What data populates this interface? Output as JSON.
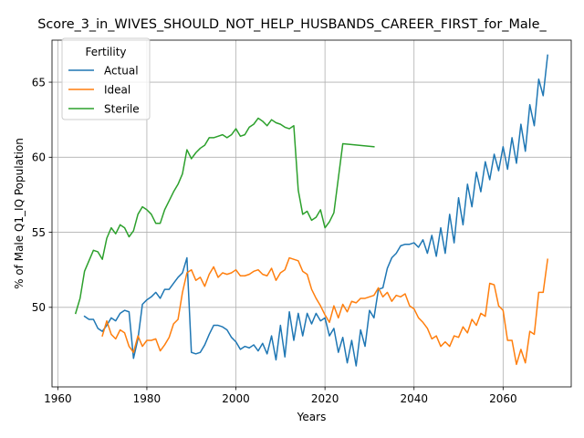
{
  "chart_data": {
    "type": "line",
    "title": "Score_3_in_WIVES_SHOULD_NOT_HELP_HUSBANDS_CAREER_FIRST_for_Male_",
    "xlabel": "Years",
    "ylabel": "% of Male Q1_IQ Population",
    "xlim": [
      1958.7,
      2075.3
    ],
    "ylim": [
      44.7,
      67.8
    ],
    "xticks": [
      1960,
      1980,
      2000,
      2020,
      2040,
      2060
    ],
    "yticks": [
      50,
      55,
      60,
      65
    ],
    "grid": true,
    "legend": {
      "title": "Fertility",
      "placement": "top-left"
    },
    "colors": {
      "Actual": "#1f77b4",
      "Ideal": "#ff7f0e",
      "Sterile": "#2ca02c"
    },
    "series": [
      {
        "name": "Actual",
        "points": [
          [
            1966,
            49.4
          ],
          [
            1967,
            49.2
          ],
          [
            1968,
            49.2
          ],
          [
            1969,
            48.6
          ],
          [
            1970,
            48.4
          ],
          [
            1971,
            48.8
          ],
          [
            1972,
            49.3
          ],
          [
            1973,
            49.1
          ],
          [
            1974,
            49.6
          ],
          [
            1975,
            49.8
          ],
          [
            1976,
            49.7
          ],
          [
            1977,
            46.6
          ],
          [
            1978,
            47.9
          ],
          [
            1979,
            50.2
          ],
          [
            1980,
            50.5
          ],
          [
            1981,
            50.7
          ],
          [
            1982,
            51.0
          ],
          [
            1983,
            50.6
          ],
          [
            1984,
            51.2
          ],
          [
            1985,
            51.2
          ],
          [
            1986,
            51.6
          ],
          [
            1987,
            52.0
          ],
          [
            1988,
            52.3
          ],
          [
            1989,
            53.3
          ],
          [
            1990,
            47.0
          ],
          [
            1991,
            46.9
          ],
          [
            1992,
            47.0
          ],
          [
            1993,
            47.5
          ],
          [
            1994,
            48.2
          ],
          [
            1995,
            48.8
          ],
          [
            1996,
            48.8
          ],
          [
            1997,
            48.7
          ],
          [
            1998,
            48.5
          ],
          [
            1999,
            48.0
          ],
          [
            2000,
            47.7
          ],
          [
            2001,
            47.2
          ],
          [
            2002,
            47.4
          ],
          [
            2003,
            47.3
          ],
          [
            2004,
            47.5
          ],
          [
            2005,
            47.1
          ],
          [
            2006,
            47.6
          ],
          [
            2007,
            46.9
          ],
          [
            2008,
            48.1
          ],
          [
            2009,
            46.5
          ],
          [
            2010,
            48.8
          ],
          [
            2011,
            46.7
          ],
          [
            2012,
            49.7
          ],
          [
            2013,
            47.8
          ],
          [
            2014,
            49.6
          ],
          [
            2015,
            48.1
          ],
          [
            2016,
            49.6
          ],
          [
            2017,
            48.9
          ],
          [
            2018,
            49.6
          ],
          [
            2019,
            49.1
          ],
          [
            2020,
            49.3
          ],
          [
            2021,
            48.1
          ],
          [
            2022,
            48.6
          ],
          [
            2023,
            47.0
          ],
          [
            2024,
            48.0
          ],
          [
            2025,
            46.3
          ],
          [
            2026,
            47.8
          ],
          [
            2027,
            46.1
          ],
          [
            2028,
            48.5
          ],
          [
            2029,
            47.4
          ],
          [
            2030,
            49.8
          ],
          [
            2031,
            49.3
          ],
          [
            2032,
            51.2
          ],
          [
            2033,
            51.3
          ],
          [
            2034,
            52.6
          ],
          [
            2035,
            53.3
          ],
          [
            2036,
            53.6
          ],
          [
            2037,
            54.1
          ],
          [
            2038,
            54.2
          ],
          [
            2039,
            54.2
          ],
          [
            2040,
            54.3
          ],
          [
            2041,
            54.0
          ],
          [
            2042,
            54.5
          ],
          [
            2043,
            53.6
          ],
          [
            2044,
            54.8
          ],
          [
            2045,
            53.4
          ],
          [
            2046,
            55.3
          ],
          [
            2047,
            53.6
          ],
          [
            2048,
            56.2
          ],
          [
            2049,
            54.3
          ],
          [
            2050,
            57.3
          ],
          [
            2051,
            55.5
          ],
          [
            2052,
            58.2
          ],
          [
            2053,
            56.7
          ],
          [
            2054,
            59.0
          ],
          [
            2055,
            57.7
          ],
          [
            2056,
            59.7
          ],
          [
            2057,
            58.5
          ],
          [
            2058,
            60.2
          ],
          [
            2059,
            59.1
          ],
          [
            2060,
            60.7
          ],
          [
            2061,
            59.2
          ],
          [
            2062,
            61.3
          ],
          [
            2063,
            59.6
          ],
          [
            2064,
            62.2
          ],
          [
            2065,
            60.4
          ],
          [
            2066,
            63.5
          ],
          [
            2067,
            62.1
          ],
          [
            2068,
            65.2
          ],
          [
            2069,
            64.1
          ],
          [
            2070,
            66.8
          ]
        ]
      },
      {
        "name": "Ideal",
        "points": [
          [
            1970,
            48.1
          ],
          [
            1971,
            49.1
          ],
          [
            1972,
            48.2
          ],
          [
            1973,
            47.9
          ],
          [
            1974,
            48.5
          ],
          [
            1975,
            48.3
          ],
          [
            1976,
            47.4
          ],
          [
            1977,
            47.0
          ],
          [
            1978,
            48.1
          ],
          [
            1979,
            47.4
          ],
          [
            1980,
            47.8
          ],
          [
            1981,
            47.8
          ],
          [
            1982,
            47.9
          ],
          [
            1983,
            47.1
          ],
          [
            1984,
            47.5
          ],
          [
            1985,
            48.0
          ],
          [
            1986,
            48.9
          ],
          [
            1987,
            49.2
          ],
          [
            1988,
            51.0
          ],
          [
            1989,
            52.3
          ],
          [
            1990,
            52.5
          ],
          [
            1991,
            51.8
          ],
          [
            1992,
            52.0
          ],
          [
            1993,
            51.4
          ],
          [
            1994,
            52.2
          ],
          [
            1995,
            52.7
          ],
          [
            1996,
            52.0
          ],
          [
            1997,
            52.3
          ],
          [
            1998,
            52.2
          ],
          [
            1999,
            52.3
          ],
          [
            2000,
            52.5
          ],
          [
            2001,
            52.1
          ],
          [
            2002,
            52.1
          ],
          [
            2003,
            52.2
          ],
          [
            2004,
            52.4
          ],
          [
            2005,
            52.5
          ],
          [
            2006,
            52.2
          ],
          [
            2007,
            52.1
          ],
          [
            2008,
            52.6
          ],
          [
            2009,
            51.8
          ],
          [
            2010,
            52.3
          ],
          [
            2011,
            52.5
          ],
          [
            2012,
            53.3
          ],
          [
            2013,
            53.2
          ],
          [
            2014,
            53.1
          ],
          [
            2015,
            52.4
          ],
          [
            2016,
            52.2
          ],
          [
            2017,
            51.2
          ],
          [
            2018,
            50.6
          ],
          [
            2019,
            50.1
          ],
          [
            2020,
            49.5
          ],
          [
            2021,
            49.0
          ],
          [
            2022,
            50.1
          ],
          [
            2023,
            49.3
          ],
          [
            2024,
            50.2
          ],
          [
            2025,
            49.7
          ],
          [
            2026,
            50.4
          ],
          [
            2027,
            50.3
          ],
          [
            2028,
            50.6
          ],
          [
            2029,
            50.6
          ],
          [
            2030,
            50.7
          ],
          [
            2031,
            50.8
          ],
          [
            2032,
            51.3
          ],
          [
            2033,
            50.7
          ],
          [
            2034,
            51.0
          ],
          [
            2035,
            50.4
          ],
          [
            2036,
            50.8
          ],
          [
            2037,
            50.7
          ],
          [
            2038,
            50.9
          ],
          [
            2039,
            50.1
          ],
          [
            2040,
            49.9
          ],
          [
            2041,
            49.3
          ],
          [
            2042,
            49.0
          ],
          [
            2043,
            48.6
          ],
          [
            2044,
            47.9
          ],
          [
            2045,
            48.1
          ],
          [
            2046,
            47.4
          ],
          [
            2047,
            47.7
          ],
          [
            2048,
            47.4
          ],
          [
            2049,
            48.1
          ],
          [
            2050,
            48.0
          ],
          [
            2051,
            48.7
          ],
          [
            2052,
            48.3
          ],
          [
            2053,
            49.2
          ],
          [
            2054,
            48.8
          ],
          [
            2055,
            49.6
          ],
          [
            2056,
            49.4
          ],
          [
            2057,
            51.6
          ],
          [
            2058,
            51.5
          ],
          [
            2059,
            50.1
          ],
          [
            2060,
            49.8
          ],
          [
            2061,
            47.8
          ],
          [
            2062,
            47.8
          ],
          [
            2063,
            46.2
          ],
          [
            2064,
            47.2
          ],
          [
            2065,
            46.3
          ],
          [
            2066,
            48.4
          ],
          [
            2067,
            48.2
          ],
          [
            2068,
            51.0
          ],
          [
            2069,
            51.0
          ],
          [
            2070,
            53.2
          ]
        ]
      },
      {
        "name": "Sterile",
        "points": [
          [
            1964,
            49.6
          ],
          [
            1965,
            50.6
          ],
          [
            1966,
            52.4
          ],
          [
            1967,
            53.1
          ],
          [
            1968,
            53.8
          ],
          [
            1969,
            53.7
          ],
          [
            1970,
            53.2
          ],
          [
            1971,
            54.6
          ],
          [
            1972,
            55.3
          ],
          [
            1973,
            54.9
          ],
          [
            1974,
            55.5
          ],
          [
            1975,
            55.3
          ],
          [
            1976,
            54.7
          ],
          [
            1977,
            55.1
          ],
          [
            1978,
            56.2
          ],
          [
            1979,
            56.7
          ],
          [
            1980,
            56.5
          ],
          [
            1981,
            56.2
          ],
          [
            1982,
            55.6
          ],
          [
            1983,
            55.6
          ],
          [
            1984,
            56.5
          ],
          [
            1985,
            57.1
          ],
          [
            1986,
            57.7
          ],
          [
            1987,
            58.2
          ],
          [
            1988,
            58.9
          ],
          [
            1989,
            60.5
          ],
          [
            1990,
            59.9
          ],
          [
            1991,
            60.3
          ],
          [
            1992,
            60.6
          ],
          [
            1993,
            60.8
          ],
          [
            1994,
            61.3
          ],
          [
            1995,
            61.3
          ],
          [
            1996,
            61.4
          ],
          [
            1997,
            61.5
          ],
          [
            1998,
            61.3
          ],
          [
            1999,
            61.5
          ],
          [
            2000,
            61.9
          ],
          [
            2001,
            61.4
          ],
          [
            2002,
            61.5
          ],
          [
            2003,
            62.0
          ],
          [
            2004,
            62.2
          ],
          [
            2005,
            62.6
          ],
          [
            2006,
            62.4
          ],
          [
            2007,
            62.1
          ],
          [
            2008,
            62.5
          ],
          [
            2009,
            62.3
          ],
          [
            2010,
            62.2
          ],
          [
            2011,
            62.0
          ],
          [
            2012,
            61.9
          ],
          [
            2013,
            62.1
          ],
          [
            2014,
            57.8
          ],
          [
            2015,
            56.2
          ],
          [
            2016,
            56.4
          ],
          [
            2017,
            55.8
          ],
          [
            2018,
            56.0
          ],
          [
            2019,
            56.5
          ],
          [
            2020,
            55.3
          ],
          [
            2021,
            55.7
          ],
          [
            2022,
            56.3
          ],
          [
            2023,
            58.6
          ],
          [
            2024,
            60.9
          ],
          [
            2031,
            60.7
          ]
        ]
      }
    ]
  }
}
